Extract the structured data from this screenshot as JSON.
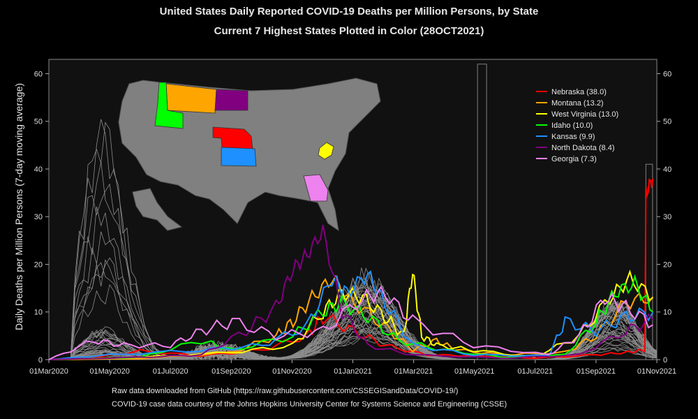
{
  "chart_data": {
    "type": "line",
    "title": "United States Daily Reported COVID-19 Deaths per Million Persons, by State",
    "subtitle": "Current 7 Highest States Plotted in Color (28OCT2021)",
    "ylabel": "Daily Deaths per Million Persons (7-day moving average)",
    "xlabel": "",
    "ylim": [
      0,
      63
    ],
    "yticks": [
      0,
      10,
      20,
      30,
      40,
      50,
      60
    ],
    "xlim": [
      "2020-03-01",
      "2021-11-01"
    ],
    "xtick_labels": [
      "01Mar2020",
      "01May2020",
      "01Jul2020",
      "01Sep2020",
      "01Nov2020",
      "01Jan2021",
      "01Mar2021",
      "01May2021",
      "01Jul2021",
      "01Sep2021",
      "01Nov2021"
    ],
    "legend_position": "top-right",
    "series": [
      {
        "name": "Nebraska (38.0)",
        "color": "#ff0000",
        "x": [
          "2020-03-01",
          "2020-04-15",
          "2020-06-01",
          "2020-08-01",
          "2020-10-01",
          "2020-11-15",
          "2020-12-01",
          "2021-01-01",
          "2021-02-01",
          "2021-03-15",
          "2021-05-01",
          "2021-07-01",
          "2021-09-01",
          "2021-10-01",
          "2021-10-20",
          "2021-10-21",
          "2021-10-28"
        ],
        "y": [
          0,
          0.5,
          1.8,
          0.8,
          2.0,
          5,
          9,
          6,
          3,
          1,
          0.8,
          0.3,
          1.0,
          1.5,
          2,
          35,
          38
        ]
      },
      {
        "name": "Montana (13.2)",
        "color": "#ffa500",
        "x": [
          "2020-03-01",
          "2020-06-01",
          "2020-09-01",
          "2020-10-15",
          "2020-11-01",
          "2020-11-20",
          "2020-12-10",
          "2021-01-01",
          "2021-02-01",
          "2021-03-01",
          "2021-03-25",
          "2021-04-15",
          "2021-06-01",
          "2021-08-01",
          "2021-09-01",
          "2021-10-01",
          "2021-10-28"
        ],
        "y": [
          0,
          0.2,
          1.5,
          5,
          8,
          13,
          17,
          12,
          7,
          2,
          4,
          2,
          1,
          1.5,
          5,
          12,
          13.2
        ]
      },
      {
        "name": "West Virginia (13.0)",
        "color": "#ffff00",
        "x": [
          "2020-03-01",
          "2020-06-01",
          "2020-09-01",
          "2020-11-01",
          "2020-12-01",
          "2020-12-20",
          "2021-01-10",
          "2021-02-01",
          "2021-02-20",
          "2021-03-01",
          "2021-03-10",
          "2021-03-25",
          "2021-05-01",
          "2021-07-01",
          "2021-08-15",
          "2021-09-15",
          "2021-10-05",
          "2021-10-28"
        ],
        "y": [
          0,
          0.5,
          1.5,
          3,
          10,
          14,
          13,
          9,
          5,
          18.5,
          5,
          3,
          2,
          0.5,
          5,
          13,
          17,
          13
        ]
      },
      {
        "name": "Idaho (10.0)",
        "color": "#00ff00",
        "x": [
          "2020-03-01",
          "2020-06-01",
          "2020-08-01",
          "2020-09-01",
          "2020-11-01",
          "2020-12-01",
          "2020-12-20",
          "2021-01-15",
          "2021-02-15",
          "2021-04-01",
          "2021-06-01",
          "2021-08-01",
          "2021-09-01",
          "2021-09-20",
          "2021-10-10",
          "2021-10-28"
        ],
        "y": [
          0,
          0.5,
          4,
          2,
          5,
          10,
          12,
          9,
          4,
          2,
          0.5,
          1,
          8,
          14,
          16,
          10
        ]
      },
      {
        "name": "Kansas (9.9)",
        "color": "#1e90ff",
        "x": [
          "2020-03-01",
          "2020-05-01",
          "2020-08-01",
          "2020-10-01",
          "2020-11-15",
          "2020-12-10",
          "2020-12-25",
          "2021-01-15",
          "2021-02-01",
          "2021-03-01",
          "2021-05-01",
          "2021-07-15",
          "2021-08-01",
          "2021-09-01",
          "2021-10-01",
          "2021-10-28"
        ],
        "y": [
          0,
          1,
          2,
          3,
          7,
          17,
          14,
          18,
          12,
          3,
          1,
          0.8,
          8,
          6,
          9,
          9.9
        ]
      },
      {
        "name": "North Dakota (8.4)",
        "color": "#800080",
        "x": [
          "2020-03-01",
          "2020-06-01",
          "2020-08-01",
          "2020-09-15",
          "2020-10-15",
          "2020-11-01",
          "2020-11-15",
          "2020-12-01",
          "2020-12-20",
          "2021-01-15",
          "2021-03-01",
          "2021-06-01",
          "2021-08-15",
          "2021-10-01",
          "2021-10-28"
        ],
        "y": [
          0,
          0.5,
          1,
          6,
          11,
          19,
          22,
          27,
          10,
          3,
          1,
          0.3,
          1,
          6,
          8.4
        ]
      },
      {
        "name": "Georgia (7.3)",
        "color": "#ee82ee",
        "x": [
          "2020-03-01",
          "2020-04-15",
          "2020-05-15",
          "2020-07-01",
          "2020-08-01",
          "2020-09-01",
          "2020-10-15",
          "2020-12-01",
          "2021-01-10",
          "2021-02-01",
          "2021-03-01",
          "2021-05-01",
          "2021-07-15",
          "2021-08-15",
          "2021-09-10",
          "2021-10-01",
          "2021-10-28"
        ],
        "y": [
          0,
          4,
          3,
          3,
          6,
          8,
          5,
          6,
          13,
          14,
          8,
          3,
          1,
          5,
          13,
          11,
          7.3
        ]
      }
    ],
    "background_states_note_values": [
      52,
      38,
      62,
      41
    ]
  },
  "credits": {
    "line1": "Raw data downloaded from GitHub (https://raw.githubusercontent.com/CSSEGISandData/COVID-19/)",
    "line2": "COVID-19 case data courtesy of the Johns Hopkins University Center for Systems Science and Engineering (CSSE)"
  },
  "colors": {
    "background": "#000000",
    "plot_area": "#111111",
    "background_lines": "#8c8c8c",
    "map_states": "#808080"
  }
}
